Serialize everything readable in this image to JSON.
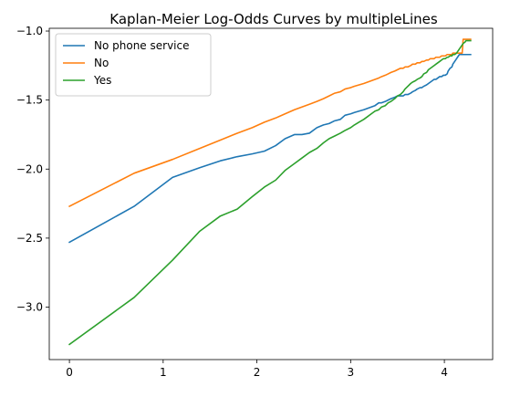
{
  "chart_data": {
    "type": "line",
    "title": "Kaplan-Meier Log-Odds Curves by multipleLines",
    "xlabel": "",
    "ylabel": "",
    "xlim": [
      -0.215,
      4.515
    ],
    "ylim": [
      -3.38,
      -0.98
    ],
    "x_ticks": [
      0,
      1,
      2,
      3,
      4
    ],
    "y_ticks": [
      -3.0,
      -2.5,
      -2.0,
      -1.5,
      -1.0
    ],
    "grid": false,
    "legend": "top-left",
    "series": [
      {
        "name": "No phone service",
        "color": "#1f77b4",
        "x": [
          0,
          0.69,
          1.1,
          1.39,
          1.61,
          1.79,
          1.95,
          2.08,
          2.2,
          2.3,
          2.4,
          2.48,
          2.56,
          2.64,
          2.71,
          2.77,
          2.83,
          2.89,
          2.94,
          3.0,
          3.04,
          3.09,
          3.14,
          3.18,
          3.22,
          3.26,
          3.3,
          3.33,
          3.37,
          3.4,
          3.43,
          3.47,
          3.5,
          3.53,
          3.56,
          3.58,
          3.61,
          3.64,
          3.66,
          3.69,
          3.71,
          3.74,
          3.76,
          3.78,
          3.81,
          3.83,
          3.85,
          3.87,
          3.89,
          3.91,
          3.93,
          3.95,
          3.97,
          3.99,
          4.01,
          4.03,
          4.04,
          4.06,
          4.08,
          4.09,
          4.11,
          4.13,
          4.14,
          4.16,
          4.17,
          4.19,
          4.2,
          4.22,
          4.23,
          4.25,
          4.26,
          4.28
        ],
        "values": [
          -2.53,
          -2.27,
          -2.06,
          -1.99,
          -1.94,
          -1.91,
          -1.89,
          -1.87,
          -1.83,
          -1.78,
          -1.75,
          -1.75,
          -1.74,
          -1.7,
          -1.68,
          -1.67,
          -1.65,
          -1.64,
          -1.61,
          -1.6,
          -1.59,
          -1.58,
          -1.57,
          -1.56,
          -1.55,
          -1.54,
          -1.52,
          -1.52,
          -1.51,
          -1.5,
          -1.49,
          -1.48,
          -1.47,
          -1.47,
          -1.47,
          -1.46,
          -1.46,
          -1.45,
          -1.44,
          -1.43,
          -1.42,
          -1.41,
          -1.41,
          -1.4,
          -1.39,
          -1.38,
          -1.37,
          -1.36,
          -1.35,
          -1.35,
          -1.34,
          -1.33,
          -1.33,
          -1.32,
          -1.32,
          -1.31,
          -1.29,
          -1.27,
          -1.26,
          -1.24,
          -1.22,
          -1.2,
          -1.19,
          -1.17,
          -1.17,
          -1.17,
          -1.17,
          -1.17,
          -1.17,
          -1.17,
          -1.17,
          -1.17
        ]
      },
      {
        "name": "No",
        "color": "#ff7f0e",
        "x": [
          0,
          0.69,
          1.1,
          1.39,
          1.61,
          1.79,
          1.95,
          2.08,
          2.2,
          2.3,
          2.4,
          2.48,
          2.56,
          2.64,
          2.71,
          2.77,
          2.83,
          2.89,
          2.94,
          3.0,
          3.04,
          3.09,
          3.14,
          3.18,
          3.22,
          3.26,
          3.3,
          3.33,
          3.37,
          3.4,
          3.43,
          3.47,
          3.5,
          3.53,
          3.56,
          3.58,
          3.61,
          3.64,
          3.66,
          3.69,
          3.71,
          3.74,
          3.76,
          3.78,
          3.81,
          3.83,
          3.85,
          3.87,
          3.89,
          3.91,
          3.93,
          3.95,
          3.97,
          3.99,
          4.01,
          4.03,
          4.04,
          4.06,
          4.08,
          4.09,
          4.11,
          4.13,
          4.14,
          4.16,
          4.17,
          4.19,
          4.2,
          4.22,
          4.23,
          4.25,
          4.26,
          4.28
        ],
        "values": [
          -2.27,
          -2.03,
          -1.93,
          -1.85,
          -1.79,
          -1.74,
          -1.7,
          -1.66,
          -1.63,
          -1.6,
          -1.57,
          -1.55,
          -1.53,
          -1.51,
          -1.49,
          -1.47,
          -1.45,
          -1.44,
          -1.42,
          -1.41,
          -1.4,
          -1.39,
          -1.38,
          -1.37,
          -1.36,
          -1.35,
          -1.34,
          -1.33,
          -1.32,
          -1.31,
          -1.3,
          -1.29,
          -1.28,
          -1.27,
          -1.27,
          -1.26,
          -1.26,
          -1.25,
          -1.24,
          -1.24,
          -1.23,
          -1.23,
          -1.22,
          -1.22,
          -1.21,
          -1.21,
          -1.2,
          -1.2,
          -1.2,
          -1.19,
          -1.19,
          -1.19,
          -1.18,
          -1.18,
          -1.18,
          -1.17,
          -1.17,
          -1.17,
          -1.17,
          -1.16,
          -1.16,
          -1.16,
          -1.16,
          -1.16,
          -1.16,
          -1.16,
          -1.06,
          -1.06,
          -1.06,
          -1.06,
          -1.06,
          -1.06
        ]
      },
      {
        "name": "Yes",
        "color": "#2ca02c",
        "x": [
          0,
          0.69,
          1.1,
          1.39,
          1.61,
          1.79,
          1.95,
          2.08,
          2.2,
          2.3,
          2.4,
          2.48,
          2.56,
          2.64,
          2.71,
          2.77,
          2.83,
          2.89,
          2.94,
          3.0,
          3.04,
          3.09,
          3.14,
          3.18,
          3.22,
          3.26,
          3.3,
          3.33,
          3.37,
          3.4,
          3.43,
          3.47,
          3.5,
          3.53,
          3.56,
          3.58,
          3.61,
          3.64,
          3.66,
          3.69,
          3.71,
          3.74,
          3.76,
          3.78,
          3.81,
          3.83,
          3.85,
          3.87,
          3.89,
          3.91,
          3.93,
          3.95,
          3.97,
          3.99,
          4.01,
          4.03,
          4.04,
          4.06,
          4.08,
          4.09,
          4.11,
          4.13,
          4.14,
          4.16,
          4.17,
          4.19,
          4.2,
          4.22,
          4.23,
          4.25,
          4.26,
          4.28
        ],
        "values": [
          -3.27,
          -2.93,
          -2.66,
          -2.45,
          -2.34,
          -2.29,
          -2.2,
          -2.13,
          -2.08,
          -2.01,
          -1.96,
          -1.92,
          -1.88,
          -1.85,
          -1.81,
          -1.78,
          -1.76,
          -1.74,
          -1.72,
          -1.7,
          -1.68,
          -1.66,
          -1.64,
          -1.62,
          -1.6,
          -1.58,
          -1.57,
          -1.55,
          -1.54,
          -1.52,
          -1.51,
          -1.49,
          -1.47,
          -1.46,
          -1.44,
          -1.42,
          -1.4,
          -1.38,
          -1.37,
          -1.36,
          -1.35,
          -1.34,
          -1.33,
          -1.31,
          -1.3,
          -1.28,
          -1.27,
          -1.26,
          -1.25,
          -1.24,
          -1.23,
          -1.22,
          -1.21,
          -1.2,
          -1.2,
          -1.19,
          -1.19,
          -1.18,
          -1.18,
          -1.17,
          -1.17,
          -1.16,
          -1.15,
          -1.13,
          -1.12,
          -1.1,
          -1.09,
          -1.08,
          -1.07,
          -1.07,
          -1.07,
          -1.07
        ]
      }
    ]
  }
}
